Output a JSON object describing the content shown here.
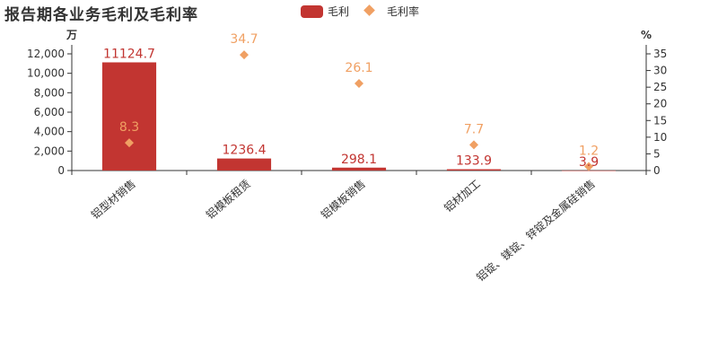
{
  "title": "报告期各业务毛利及毛利率",
  "legend": [
    {
      "name": "毛利",
      "color": "#c23531",
      "shape": "bar"
    },
    {
      "name": "毛利率",
      "color": "#f0a063",
      "shape": "diamond"
    }
  ],
  "chart_data": {
    "type": "bar",
    "title": "报告期各业务毛利及毛利率",
    "categories": [
      "铝型材销售",
      "铝模板租赁",
      "铝模板销售",
      "铝材加工",
      "铝锭、镁锭、锌锭及金属硅销售"
    ],
    "series": [
      {
        "name": "毛利",
        "type": "bar",
        "axis": "left",
        "color": "#c23531",
        "values": [
          11124.7,
          1236.4,
          298.1,
          133.9,
          3.9
        ],
        "labels": [
          "11124.7",
          "1236.4",
          "298.1",
          "133.9",
          "3.9"
        ]
      },
      {
        "name": "毛利率",
        "type": "scatter",
        "axis": "right",
        "color": "#f0a063",
        "values": [
          8.3,
          34.7,
          26.1,
          7.7,
          1.2
        ],
        "labels": [
          "8.3",
          "34.7",
          "26.1",
          "7.7",
          "1.2"
        ]
      }
    ],
    "y_left": {
      "unit": "万",
      "min": 0,
      "max": 12000,
      "ticks": [
        0,
        2000,
        4000,
        6000,
        8000,
        10000,
        12000
      ],
      "tick_labels": [
        "0",
        "2,000",
        "4,000",
        "6,000",
        "8,000",
        "10,000",
        "12,000"
      ]
    },
    "y_right": {
      "unit": "%",
      "min": 0,
      "max": 35,
      "ticks": [
        0,
        5,
        10,
        15,
        20,
        25,
        30,
        35
      ],
      "tick_labels": [
        "0",
        "5",
        "10",
        "15",
        "20",
        "25",
        "30",
        "35"
      ]
    },
    "grid": false,
    "legend_position": "top-center"
  }
}
